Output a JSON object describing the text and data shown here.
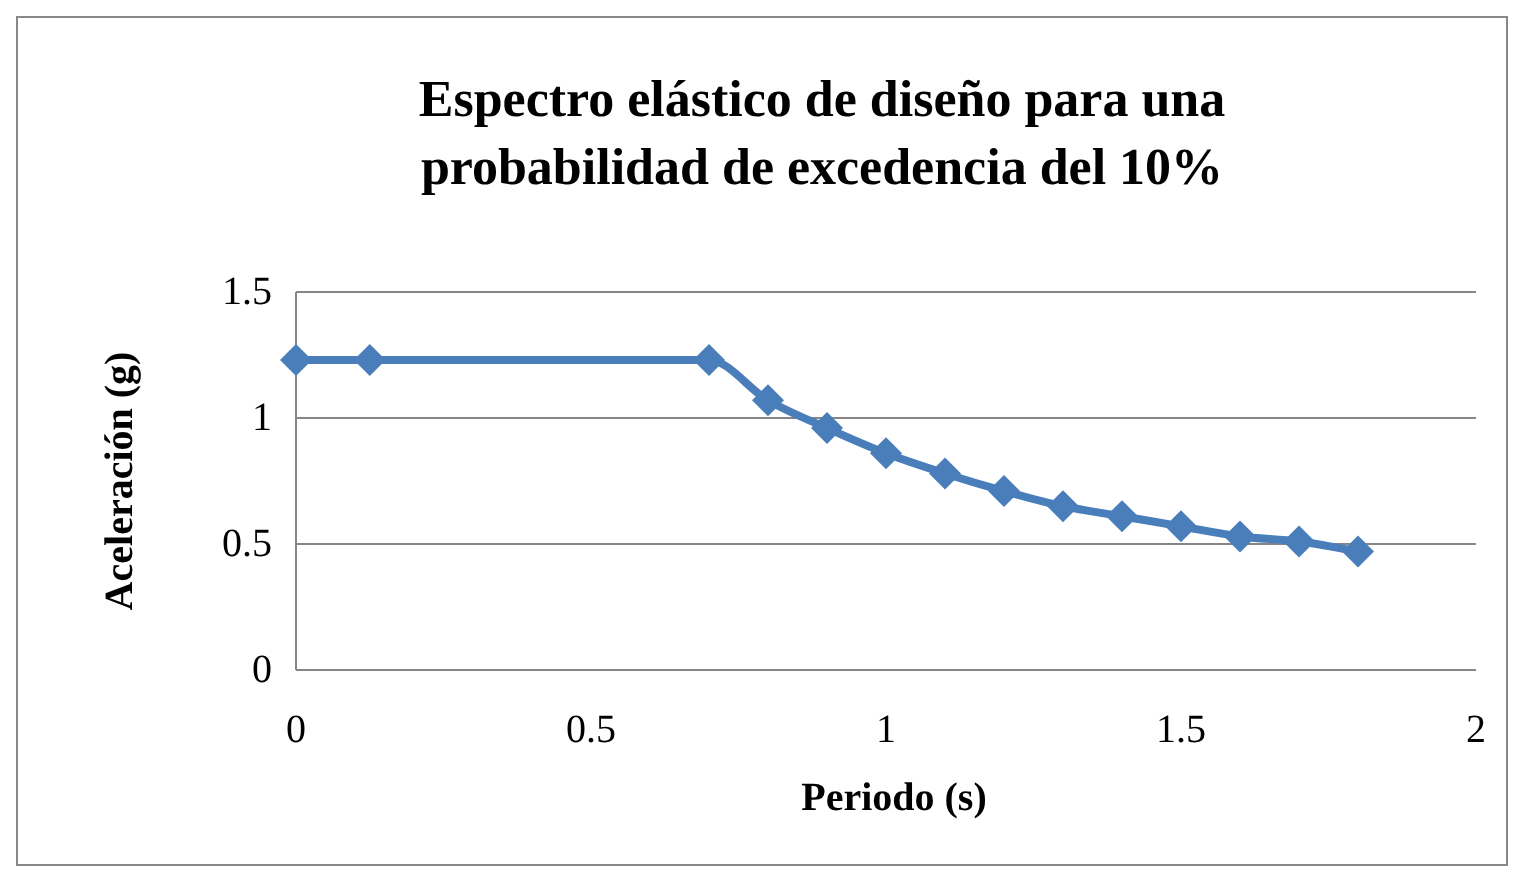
{
  "chart_data": {
    "type": "line",
    "title": "Espectro elástico de diseño para una probabilidad de excedencia del 10%",
    "xlabel": "Periodo (s)",
    "ylabel": "Aceleración (g)",
    "x": [
      0,
      0.125,
      0.7,
      0.8,
      0.9,
      1.0,
      1.1,
      1.2,
      1.3,
      1.4,
      1.5,
      1.6,
      1.7,
      1.8
    ],
    "series": [
      {
        "color": "#4a7ebb",
        "values": [
          1.23,
          1.23,
          1.23,
          1.07,
          0.96,
          0.86,
          0.78,
          0.71,
          0.65,
          0.61,
          0.57,
          0.53,
          0.51,
          0.47
        ]
      }
    ],
    "xlim": [
      0,
      2
    ],
    "xticks": [
      0,
      0.5,
      1,
      1.5,
      2
    ],
    "ylim": [
      0,
      1.5
    ],
    "yticks": [
      0,
      0.5,
      1,
      1.5
    ],
    "grid": "y",
    "marker": "diamond",
    "line_style": "solid"
  }
}
